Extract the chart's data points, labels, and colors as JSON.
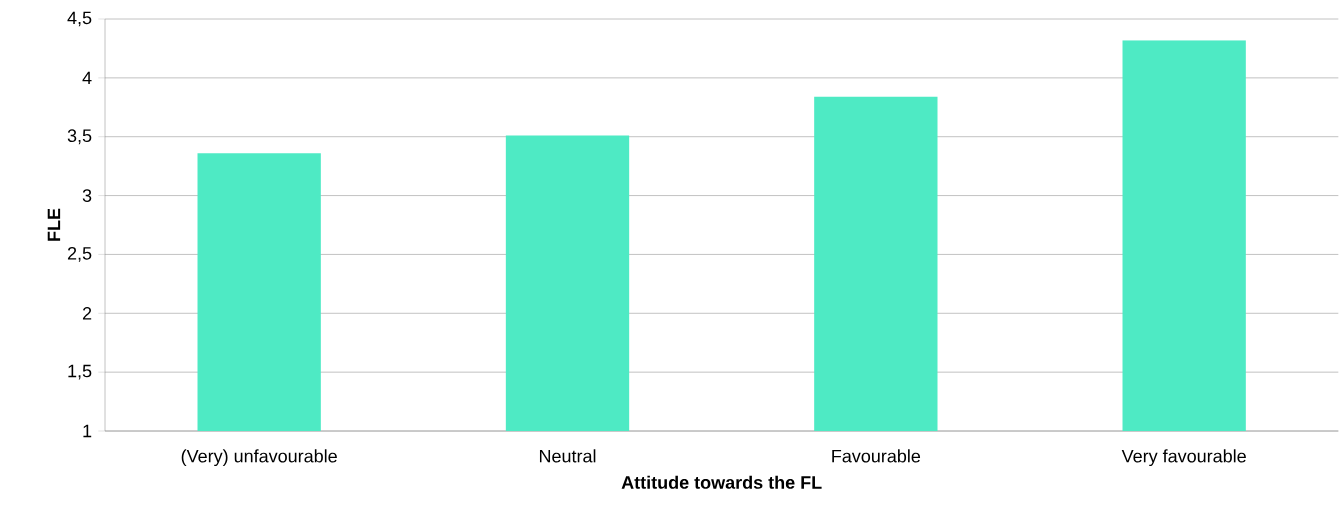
{
  "chart_data": {
    "type": "bar",
    "xlabel": "Attitude towards the FL",
    "ylabel": "FLE",
    "categories": [
      "(Very) unfavourable",
      "Neutral",
      "Favourable",
      "Very favourable"
    ],
    "values": [
      3.36,
      3.51,
      3.84,
      4.32
    ],
    "color": "#4eeac4",
    "ylim": [
      1,
      4.5
    ],
    "yticks": [
      1,
      {
        "value": 1.5,
        "label": "1,5"
      },
      2,
      {
        "value": 2.5,
        "label": "2,5"
      },
      3,
      {
        "value": 3.5,
        "label": "3,5"
      },
      4,
      {
        "value": 4.5,
        "label": "4,5"
      }
    ],
    "grid": "y"
  }
}
